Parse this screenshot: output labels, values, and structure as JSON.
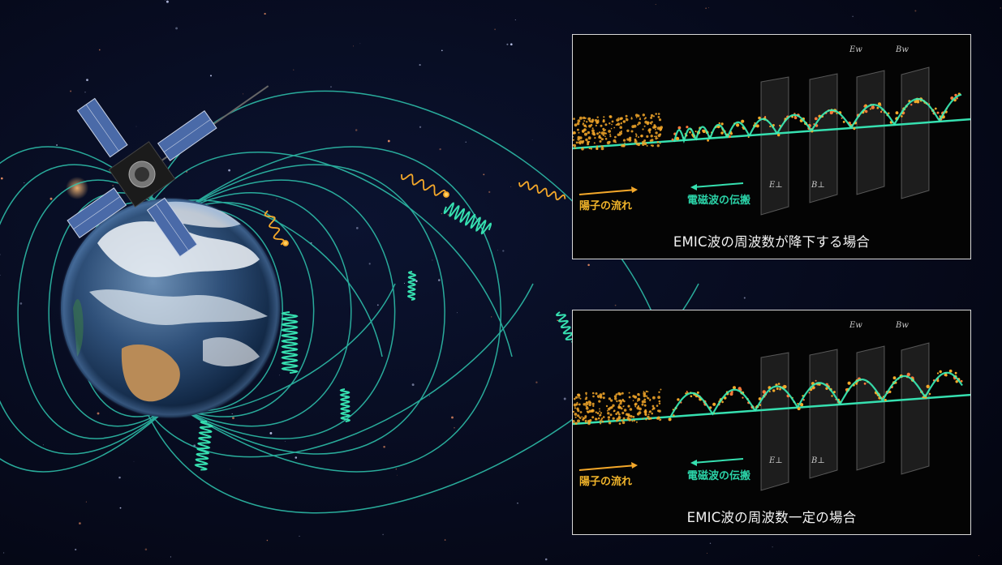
{
  "panels": [
    {
      "caption": "EMIC波の周波数が降下する場合",
      "proton_flow_label": "陽子の流れ",
      "wave_propagation_label": "電磁波の伝搬",
      "axis_labels": [
        "E⊥",
        "B⊥",
        "Ew",
        "Bw"
      ]
    },
    {
      "caption": "EMIC波の周波数一定の場合",
      "proton_flow_label": "陽子の流れ",
      "wave_propagation_label": "電磁波の伝搬",
      "axis_labels": [
        "E⊥",
        "B⊥",
        "Ew",
        "Bw"
      ]
    }
  ],
  "colors": {
    "space": "#05081a",
    "field_line": "#2fc7b0",
    "wave": "#36e0b0",
    "proton": "#f4a82a",
    "panel_border": "#d8d8d8"
  },
  "icons": [
    "satellite-icon",
    "earth-icon"
  ]
}
